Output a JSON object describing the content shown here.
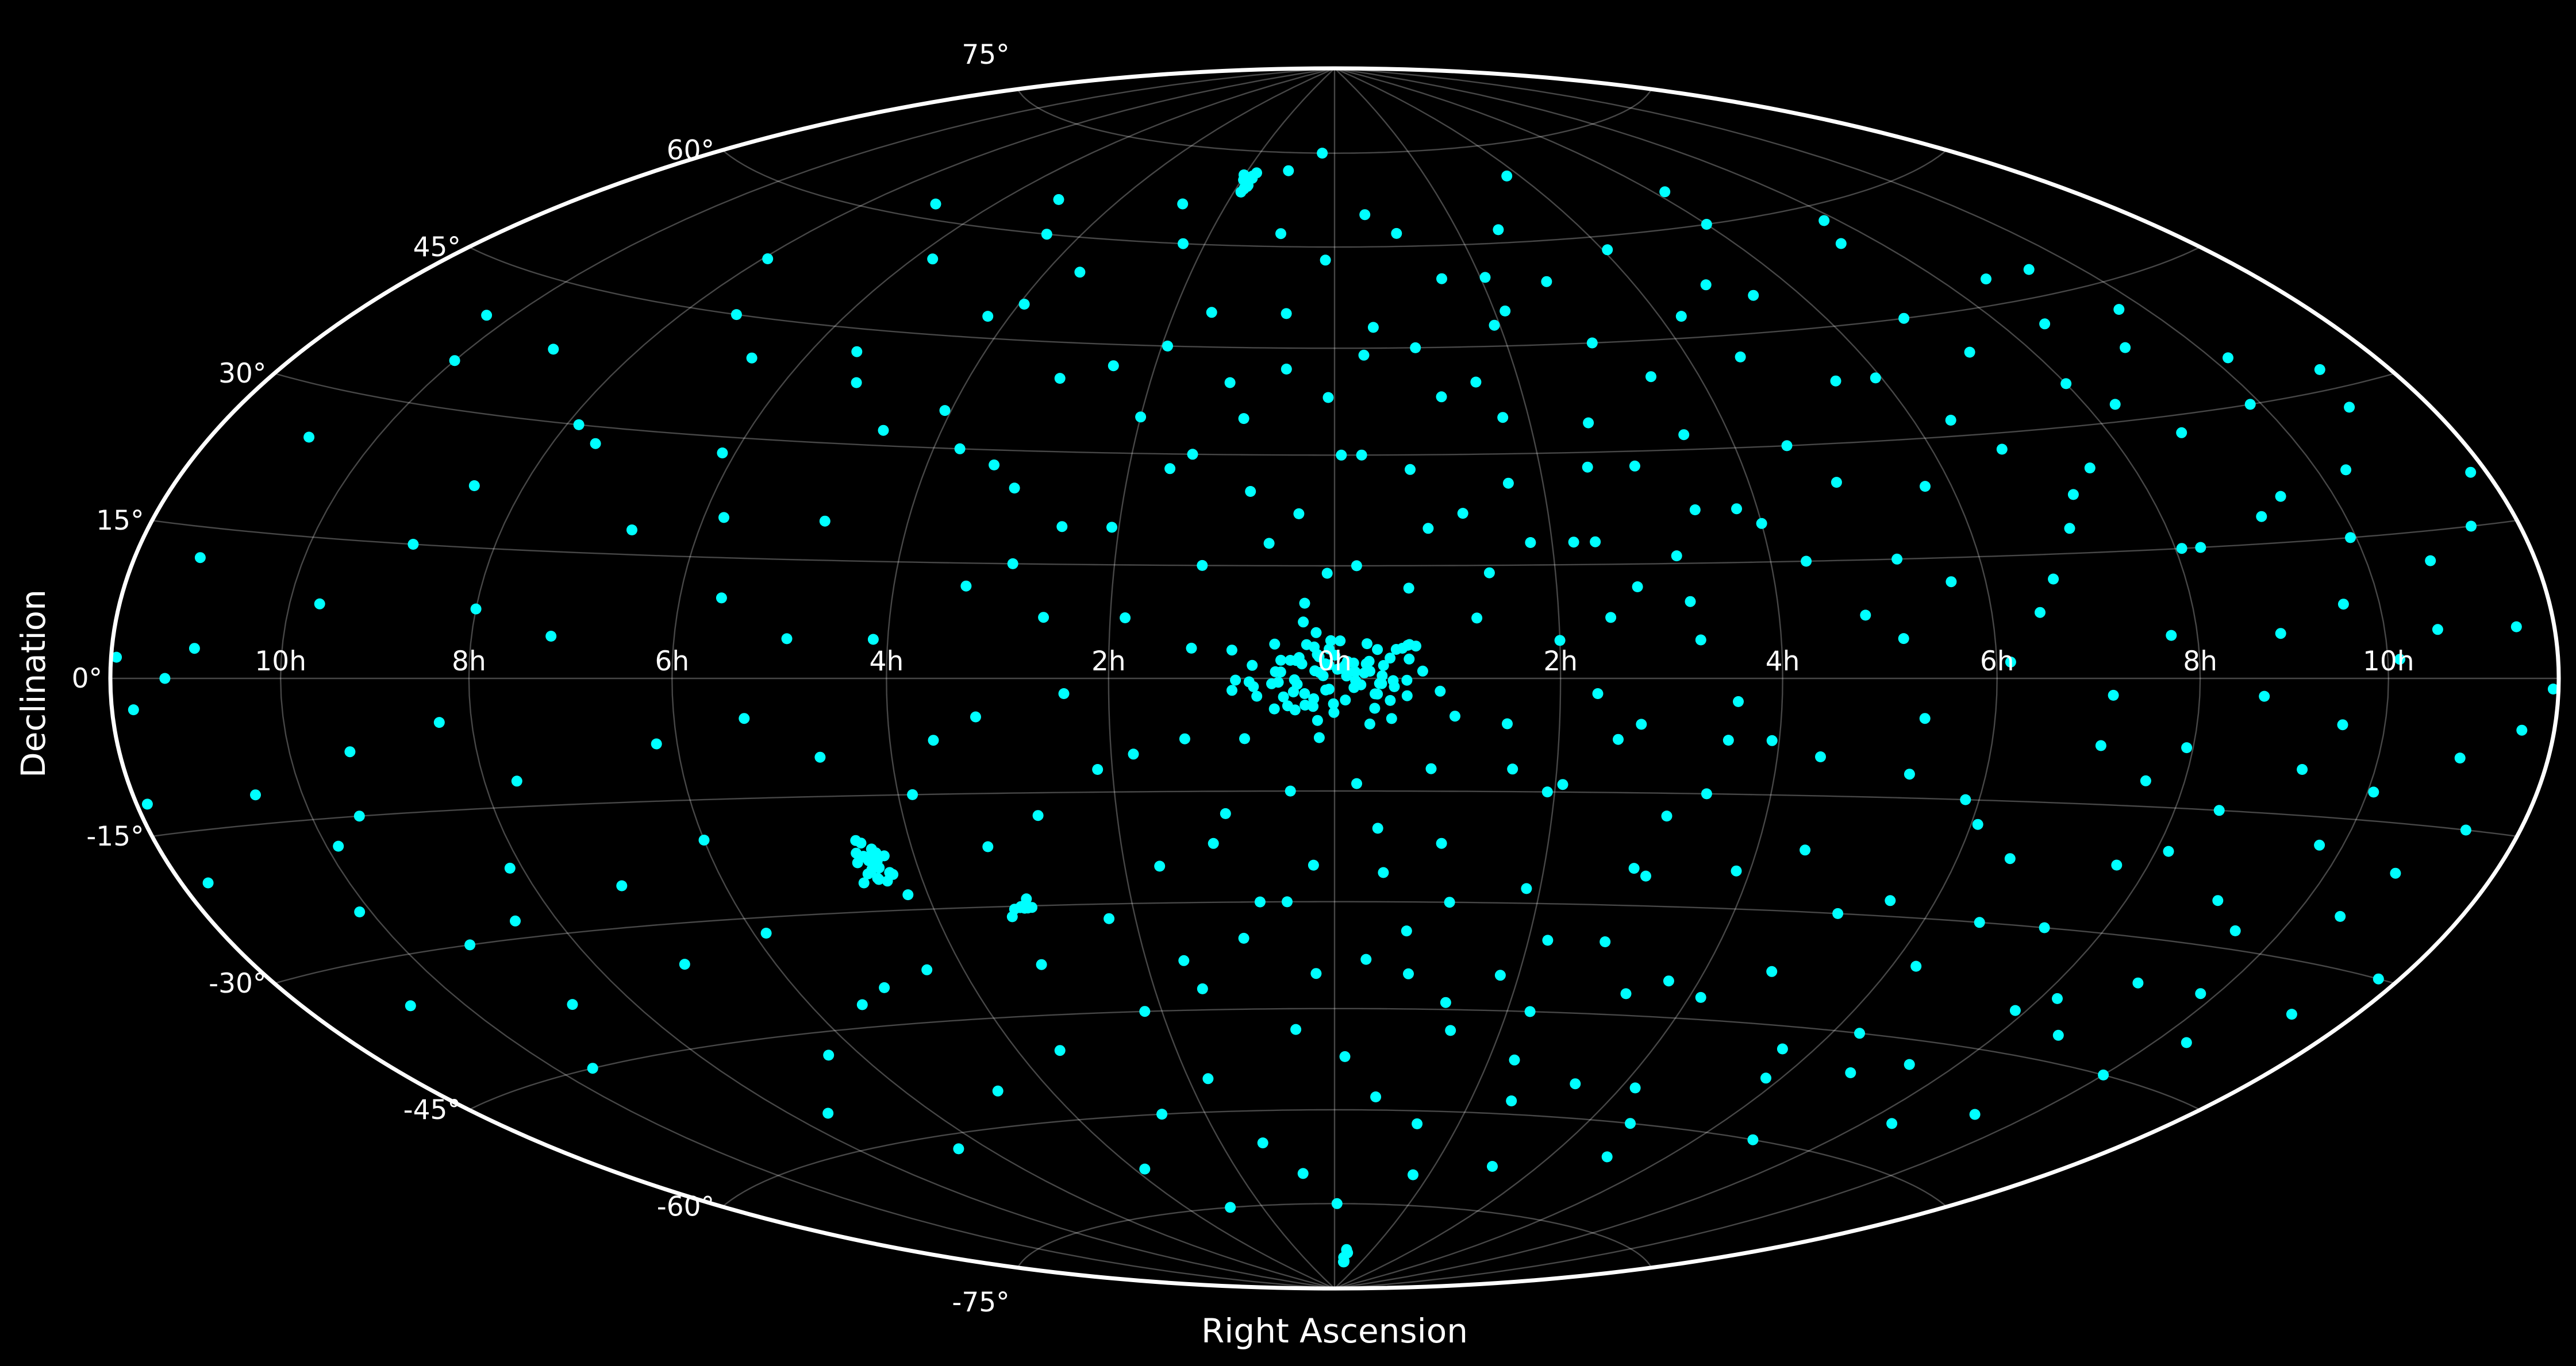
{
  "chart_data": {
    "type": "scatter",
    "projection": "hammer",
    "xlabel": "Right Ascension",
    "ylabel": "Declination",
    "ra_tick_labels": [
      "10h",
      "8h",
      "6h",
      "4h",
      "2h",
      "0h",
      "2h",
      "4h",
      "6h",
      "8h",
      "10h"
    ],
    "ra_tick_lon_deg": [
      -150,
      -120,
      -90,
      -60,
      -30,
      0,
      30,
      60,
      90,
      120,
      150
    ],
    "dec_tick_labels": [
      "-75°",
      "-60°",
      "-45°",
      "-30°",
      "-15°",
      "0°",
      "15°",
      "30°",
      "45°",
      "60°",
      "75°"
    ],
    "dec_tick_lat_deg": [
      -75,
      -60,
      -45,
      -30,
      -15,
      0,
      15,
      30,
      45,
      60,
      75
    ],
    "xlim_deg": [
      -180,
      180
    ],
    "ylim_deg": [
      -90,
      90
    ],
    "grid": true,
    "colors": {
      "background": "#000000",
      "points": "#00ffff",
      "boundary": "#ffffff",
      "grid": "#808080",
      "text": "#ffffff"
    },
    "clusters": [
      {
        "name": "",
        "center_lon_deg": 0,
        "center_lat_deg": 0,
        "spread_deg": 3,
        "count": 90
      },
      {
        "name": "",
        "center_lon_deg": -66,
        "center_lat_deg": -24,
        "spread_deg": 1.5,
        "count": 22
      },
      {
        "name": "",
        "center_lon_deg": -47,
        "center_lat_deg": -30,
        "spread_deg": 1,
        "count": 10
      },
      {
        "name": "",
        "center_lon_deg": -28,
        "center_lat_deg": 70,
        "spread_deg": 1,
        "count": 12
      },
      {
        "name": "",
        "center_lon_deg": 10,
        "center_lat_deg": -84,
        "spread_deg": 1,
        "count": 8
      }
    ],
    "points": [
      [
        -179,
        2
      ],
      [
        -176,
        -3
      ],
      [
        -170,
        0
      ],
      [
        -165,
        3
      ],
      [
        -158,
        -12
      ],
      [
        -152,
        -25
      ],
      [
        -148,
        -18
      ],
      [
        -145,
        8
      ],
      [
        -140,
        -8
      ],
      [
        -138,
        -30
      ],
      [
        -133,
        15
      ],
      [
        -128,
        22
      ],
      [
        -125,
        -5
      ],
      [
        -122,
        -22
      ],
      [
        -118,
        30
      ],
      [
        -115,
        -12
      ],
      [
        -110,
        45
      ],
      [
        -108,
        5
      ],
      [
        -105,
        -35
      ],
      [
        -100,
        18
      ],
      [
        -96,
        -48
      ],
      [
        -92,
        28
      ],
      [
        -90,
        -20
      ],
      [
        -86,
        55
      ],
      [
        -84,
        10
      ],
      [
        -80,
        -5
      ],
      [
        -78,
        38
      ],
      [
        -75,
        -40
      ],
      [
        -72,
        20
      ],
      [
        -70,
        -10
      ],
      [
        -68,
        60
      ],
      [
        -64,
        48
      ],
      [
        -62,
        5
      ],
      [
        -58,
        -15
      ],
      [
        -56,
        30
      ],
      [
        -52,
        -50
      ],
      [
        -50,
        12
      ],
      [
        -48,
        -5
      ],
      [
        -45,
        40
      ],
      [
        -42,
        66
      ],
      [
        -40,
        -60
      ],
      [
        -38,
        20
      ],
      [
        -36,
        -2
      ],
      [
        -33,
        -45
      ],
      [
        -30,
        35
      ],
      [
        -28,
        8
      ],
      [
        -25,
        -25
      ],
      [
        -23,
        50
      ],
      [
        -20,
        -8
      ],
      [
        -18,
        15
      ],
      [
        -16,
        72
      ],
      [
        -14,
        -35
      ],
      [
        -12,
        25
      ],
      [
        -10,
        -70
      ],
      [
        -8,
        42
      ],
      [
        -6,
        -15
      ],
      [
        -4,
        10
      ],
      [
        -2,
        58
      ],
      [
        2,
        -52
      ],
      [
        4,
        30
      ],
      [
        6,
        -20
      ],
      [
        8,
        65
      ],
      [
        10,
        12
      ],
      [
        12,
        -40
      ],
      [
        14,
        45
      ],
      [
        16,
        -5
      ],
      [
        18,
        22
      ],
      [
        20,
        -62
      ],
      [
        22,
        55
      ],
      [
        24,
        -12
      ],
      [
        26,
        35
      ],
      [
        28,
        -28
      ],
      [
        30,
        5
      ],
      [
        32,
        50
      ],
      [
        34,
        -45
      ],
      [
        36,
        18
      ],
      [
        38,
        -8
      ],
      [
        40,
        62
      ],
      [
        42,
        -35
      ],
      [
        44,
        28
      ],
      [
        46,
        -18
      ],
      [
        48,
        10
      ],
      [
        50,
        -55
      ],
      [
        52,
        40
      ],
      [
        54,
        -3
      ],
      [
        56,
        70
      ],
      [
        58,
        -25
      ],
      [
        60,
        20
      ],
      [
        62,
        -42
      ],
      [
        64,
        48
      ],
      [
        66,
        -10
      ],
      [
        68,
        30
      ],
      [
        70,
        -60
      ],
      [
        72,
        8
      ],
      [
        74,
        52
      ],
      [
        76,
        -30
      ],
      [
        78,
        15
      ],
      [
        80,
        -5
      ],
      [
        82,
        38
      ],
      [
        84,
        -48
      ],
      [
        86,
        24
      ],
      [
        88,
        -15
      ],
      [
        90,
        60
      ],
      [
        92,
        2
      ],
      [
        94,
        -36
      ],
      [
        96,
        32
      ],
      [
        98,
        -22
      ],
      [
        100,
        12
      ],
      [
        102,
        -50
      ],
      [
        104,
        45
      ],
      [
        106,
        -8
      ],
      [
        108,
        22
      ],
      [
        110,
        -30
      ],
      [
        112,
        55
      ],
      [
        114,
        -12
      ],
      [
        116,
        5
      ],
      [
        118,
        -40
      ],
      [
        120,
        35
      ],
      [
        122,
        -20
      ],
      [
        124,
        15
      ],
      [
        126,
        -55
      ],
      [
        128,
        42
      ],
      [
        130,
        -2
      ],
      [
        132,
        28
      ],
      [
        134,
        -35
      ],
      [
        136,
        18
      ],
      [
        138,
        -10
      ],
      [
        140,
        48
      ],
      [
        142,
        -28
      ],
      [
        144,
        8
      ],
      [
        146,
        -18
      ],
      [
        148,
        30
      ],
      [
        150,
        -45
      ],
      [
        152,
        2
      ],
      [
        155,
        22
      ],
      [
        158,
        -25
      ],
      [
        161,
        12
      ],
      [
        164,
        -8
      ],
      [
        167,
        32
      ],
      [
        170,
        -15
      ],
      [
        173,
        5
      ],
      [
        176,
        -30
      ],
      [
        179,
        -1
      ],
      [
        -175,
        -20
      ],
      [
        -162,
        25
      ],
      [
        -155,
        40
      ],
      [
        -143,
        -45
      ],
      [
        -131,
        -38
      ],
      [
        -119,
        52
      ],
      [
        -112,
        -55
      ],
      [
        -104,
        62
      ],
      [
        -97,
        -62
      ],
      [
        -88,
        -32
      ],
      [
        -82,
        42
      ],
      [
        -76,
        65
      ],
      [
        -71,
        -55
      ],
      [
        -66,
        -38
      ],
      [
        -61,
        35
      ],
      [
        -57,
        -68
      ],
      [
        -53,
        55
      ],
      [
        -49,
        -22
      ],
      [
        -46,
        25
      ],
      [
        -43,
        -75
      ],
      [
        -39,
        8
      ],
      [
        -35,
        60
      ],
      [
        -32,
        -12
      ],
      [
        -29,
        45
      ],
      [
        -26,
        -55
      ],
      [
        -24,
        -38
      ],
      [
        -21,
        30
      ],
      [
        -19,
        -65
      ],
      [
        -17,
        40
      ],
      [
        -15,
        -18
      ],
      [
        -13,
        62
      ],
      [
        -11,
        -30
      ],
      [
        -9,
        18
      ],
      [
        -7,
        -48
      ],
      [
        -5,
        75
      ],
      [
        -3,
        -25
      ],
      [
        -1,
        38
      ],
      [
        1,
        -75
      ],
      [
        3,
        15
      ],
      [
        5,
        -38
      ],
      [
        7,
        48
      ],
      [
        9,
        -58
      ],
      [
        11,
        28
      ],
      [
        13,
        -12
      ],
      [
        15,
        62
      ],
      [
        17,
        -30
      ],
      [
        19,
        8
      ],
      [
        21,
        -48
      ],
      [
        23,
        40
      ],
      [
        25,
        -70
      ],
      [
        27,
        18
      ],
      [
        29,
        -15
      ],
      [
        31,
        55
      ],
      [
        33,
        -35
      ],
      [
        35,
        -2
      ],
      [
        37,
        28
      ],
      [
        39,
        -58
      ],
      [
        41,
        12
      ],
      [
        43,
        -25
      ],
      [
        45,
        45
      ],
      [
        47,
        -68
      ],
      [
        49,
        5
      ],
      [
        51,
        -15
      ],
      [
        53,
        32
      ],
      [
        55,
        -40
      ],
      [
        57,
        22
      ],
      [
        59,
        -8
      ],
      [
        61,
        58
      ],
      [
        63,
        -55
      ],
      [
        65,
        15
      ],
      [
        67,
        -22
      ],
      [
        69,
        42
      ],
      [
        71,
        -38
      ],
      [
        73,
        25
      ],
      [
        75,
        -65
      ],
      [
        77,
        5
      ],
      [
        79,
        -12
      ],
      [
        81,
        50
      ],
      [
        83,
        -28
      ],
      [
        85,
        12
      ],
      [
        87,
        -52
      ],
      [
        89,
        38
      ],
      [
        91,
        -18
      ],
      [
        93,
        65
      ],
      [
        95,
        -45
      ],
      [
        97,
        8
      ],
      [
        99,
        -30
      ],
      [
        101,
        28
      ],
      [
        103,
        -60
      ],
      [
        105,
        18
      ],
      [
        107,
        -2
      ],
      [
        109,
        40
      ],
      [
        111,
        -48
      ],
      [
        113,
        25
      ],
      [
        115,
        -22
      ],
      [
        117,
        58
      ],
      [
        119,
        -8
      ],
      [
        121,
        15
      ],
      [
        123,
        -38
      ],
      [
        125,
        32
      ],
      [
        127,
        -15
      ],
      [
        129,
        48
      ],
      [
        131,
        -42
      ],
      [
        133,
        5
      ],
      [
        135,
        -25
      ],
      [
        137,
        38
      ],
      [
        139,
        -52
      ],
      [
        141,
        20
      ],
      [
        143,
        -5
      ],
      [
        145,
        42
      ],
      [
        147,
        -35
      ],
      [
        149,
        15
      ],
      [
        151,
        -12
      ],
      [
        153,
        35
      ],
      [
        156,
        -40
      ],
      [
        159,
        5
      ],
      [
        162,
        -20
      ],
      [
        165,
        28
      ],
      [
        168,
        -35
      ],
      [
        171,
        15
      ],
      [
        174,
        -5
      ],
      [
        177,
        20
      ],
      [
        -178,
        -12
      ],
      [
        -168,
        12
      ],
      [
        -160,
        -35
      ],
      [
        -150,
        35
      ],
      [
        -142,
        -15
      ],
      [
        -135,
        38
      ],
      [
        -127,
        -28
      ],
      [
        -120,
        8
      ],
      [
        -113,
        28
      ],
      [
        -106,
        -25
      ],
      [
        -99,
        40
      ],
      [
        -93,
        -8
      ],
      [
        -87,
        20
      ],
      [
        -81,
        -42
      ],
      [
        -74,
        5
      ],
      [
        -69,
        32
      ],
      [
        -63,
        -28
      ],
      [
        -59,
        50
      ],
      [
        -54,
        -8
      ],
      [
        -50,
        28
      ],
      [
        -47,
        -38
      ],
      [
        -44,
        15
      ],
      [
        -41,
        -18
      ],
      [
        -37,
        42
      ],
      [
        -34,
        -32
      ],
      [
        -31,
        20
      ],
      [
        -27,
        -10
      ],
      [
        -24,
        28
      ],
      [
        -22,
        -42
      ],
      [
        -19,
        4
      ],
      [
        -17,
        -22
      ],
      [
        -14,
        35
      ],
      [
        -12,
        -8
      ],
      [
        -9,
        50
      ],
      [
        -7,
        -30
      ],
      [
        -5,
        22
      ],
      [
        -3,
        -40
      ],
      [
        -1,
        14
      ],
      [
        1,
        30
      ],
      [
        3,
        -14
      ],
      [
        5,
        44
      ],
      [
        7,
        -26
      ],
      [
        9,
        4
      ],
      [
        11,
        -34
      ],
      [
        13,
        20
      ],
      [
        15,
        -22
      ],
      [
        17,
        38
      ],
      [
        19,
        -44
      ],
      [
        21,
        14
      ],
      [
        23,
        -6
      ],
      [
        25,
        26
      ],
      [
        27,
        -40
      ],
      [
        29,
        48
      ],
      [
        31,
        -14
      ],
      [
        33,
        18
      ],
      [
        35,
        -52
      ],
      [
        37,
        8
      ],
      [
        39,
        34
      ],
      [
        41,
        -6
      ],
      [
        43,
        54
      ],
      [
        45,
        -26
      ],
      [
        47,
        16
      ],
      [
        49,
        -42
      ],
      [
        51,
        22
      ],
      [
        53,
        -8
      ]
    ]
  }
}
